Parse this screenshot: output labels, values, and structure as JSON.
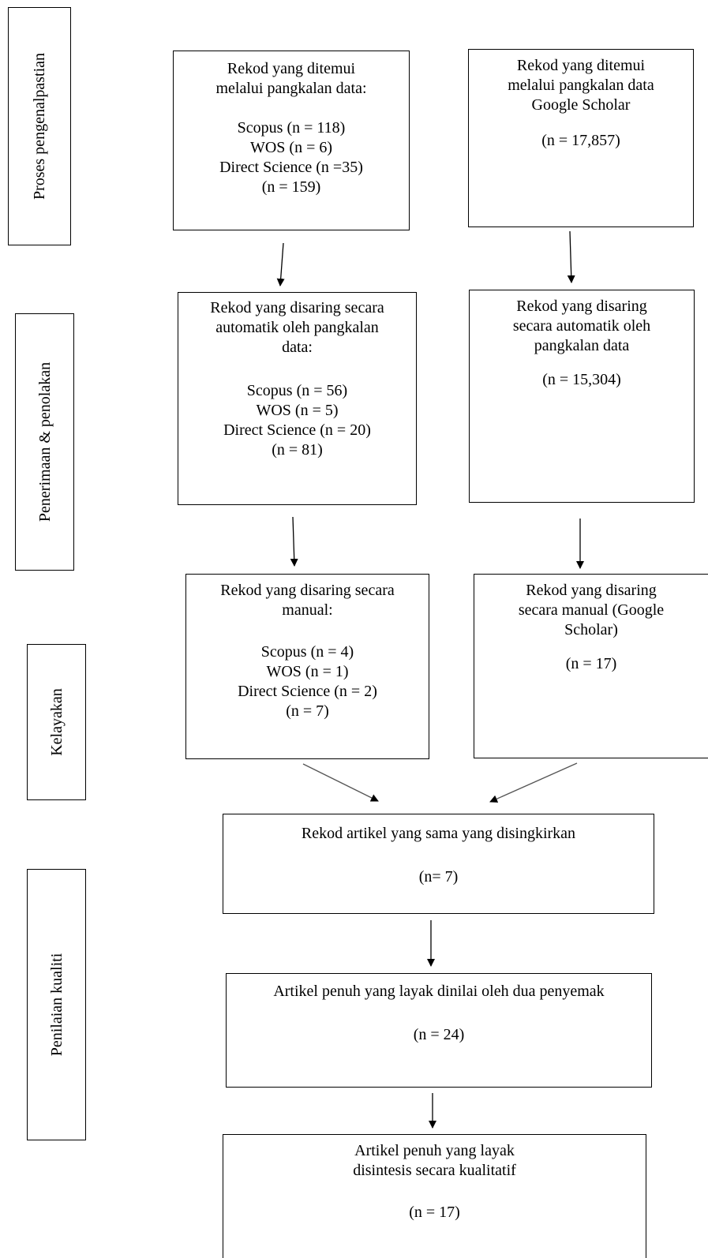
{
  "stages": [
    {
      "id": "identification",
      "label": "Proses pengenalpastian"
    },
    {
      "id": "screening",
      "label": "Penerimaan & penolakan"
    },
    {
      "id": "eligibility",
      "label": "Kelayakan"
    },
    {
      "id": "quality",
      "label": "Penilaian kualiti"
    }
  ],
  "boxes": {
    "db_identified": {
      "heading": [
        "Rekod yang ditemui",
        "melalui pangkalan data:"
      ],
      "items": [
        "Scopus (n = 118)",
        "WOS (n = 6)",
        "Direct Science (n =35)",
        "(n = 159)"
      ]
    },
    "gs_identified": {
      "heading": [
        "Rekod yang ditemui",
        "melalui pangkalan data",
        "Google Scholar"
      ],
      "items": [
        "(n = 17,857)"
      ]
    },
    "db_auto_screened": {
      "heading": [
        "Rekod yang disaring secara",
        "automatik oleh pangkalan",
        "data:"
      ],
      "items": [
        "Scopus (n = 56)",
        "WOS (n = 5)",
        "Direct Science (n = 20)",
        "(n = 81)"
      ]
    },
    "gs_auto_screened": {
      "heading": [
        "Rekod yang disaring",
        "secara automatik oleh",
        "pangkalan data"
      ],
      "items": [
        "(n = 15,304)"
      ]
    },
    "db_manual_screened": {
      "heading": [
        "Rekod yang disaring secara",
        "manual:"
      ],
      "items": [
        "Scopus (n = 4)",
        "WOS (n = 1)",
        "Direct Science (n = 2)",
        "(n = 7)"
      ]
    },
    "gs_manual_screened": {
      "heading": [
        "Rekod yang disaring",
        "secara manual (Google",
        "Scholar)"
      ],
      "items": [
        "(n = 17)"
      ]
    },
    "duplicates_removed": {
      "heading": [
        "Rekod artikel yang sama yang disingkirkan"
      ],
      "items": [
        "(n= 7)"
      ]
    },
    "fulltext_assessed": {
      "heading": [
        "Artikel penuh yang layak dinilai oleh dua penyemak"
      ],
      "items": [
        "(n = 24)"
      ]
    },
    "included": {
      "heading": [
        "Artikel penuh yang layak",
        "disintesis secara kualitatif"
      ],
      "items": [
        "(n = 17)"
      ]
    }
  }
}
